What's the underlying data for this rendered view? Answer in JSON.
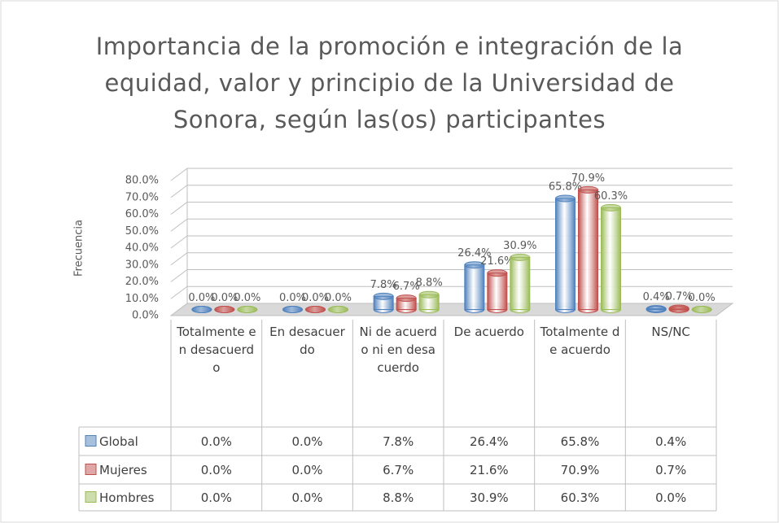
{
  "chart_data": {
    "type": "bar",
    "title": "Importancia de la promoción e integración de la equidad, valor y principio de la Universidad de Sonora, según las(os) participantes",
    "y_label": "Frecuencia",
    "categories": [
      "Totalmente en desacuerdo",
      "En desacuerdo",
      "Ni de acuerdo ni en desacuerdo",
      "De acuerdo",
      "Totalmente de acuerdo",
      "NS/NC"
    ],
    "series": [
      {
        "name": "Global",
        "color": "#4f81bd",
        "values": [
          0.0,
          0.0,
          7.8,
          26.4,
          65.8,
          0.4
        ],
        "value_labels": [
          "0.0%",
          "0.0%",
          "7.8%",
          "26.4%",
          "65.8%",
          "0.4%"
        ]
      },
      {
        "name": "Mujeres",
        "color": "#c0504d",
        "values": [
          0.0,
          0.0,
          6.7,
          21.6,
          70.9,
          0.7
        ],
        "value_labels": [
          "0.0%",
          "0.0%",
          "6.7%",
          "21.6%",
          "70.9%",
          "0.7%"
        ]
      },
      {
        "name": "Hombres",
        "color": "#9bbb59",
        "values": [
          0.0,
          0.0,
          8.8,
          30.9,
          60.3,
          0.0
        ],
        "value_labels": [
          "0.0%",
          "0.0%",
          "8.8%",
          "30.9%",
          "60.3%",
          "0.0%"
        ]
      }
    ],
    "ylim": [
      0,
      80
    ],
    "yticks": [
      {
        "value": 0,
        "label": "0.0%"
      },
      {
        "value": 10,
        "label": "10.0%"
      },
      {
        "value": 20,
        "label": "20.0%"
      },
      {
        "value": 30,
        "label": "30.0%"
      },
      {
        "value": 40,
        "label": "40.0%"
      },
      {
        "value": 50,
        "label": "50.0%"
      },
      {
        "value": 60,
        "label": "60.0%"
      },
      {
        "value": 70,
        "label": "70.0%"
      },
      {
        "value": 80,
        "label": "80.0%"
      }
    ],
    "grid": true,
    "data_table": true
  }
}
